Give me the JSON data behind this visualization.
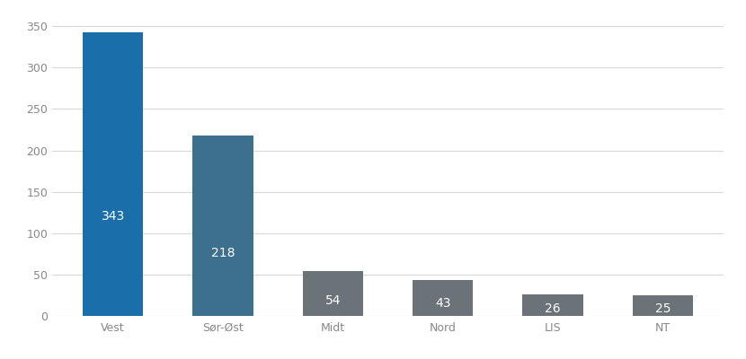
{
  "categories": [
    "Vest",
    "Sør-Øst",
    "Midt",
    "Nord",
    "LIS",
    "NT"
  ],
  "values": [
    343,
    218,
    54,
    43,
    26,
    25
  ],
  "bar_colors": [
    "#1a6faa",
    "#3d6f8e",
    "#6b7278",
    "#6b7278",
    "#6b7278",
    "#6b7278"
  ],
  "label_color": "#ffffff",
  "label_fontsize": 10,
  "ylim": [
    0,
    360
  ],
  "yticks": [
    0,
    50,
    100,
    150,
    200,
    250,
    300,
    350
  ],
  "tick_fontsize": 9,
  "background_color": "#ffffff",
  "grid_color": "#d8d8d8",
  "bar_width": 0.55,
  "tick_label_color": "#888888"
}
